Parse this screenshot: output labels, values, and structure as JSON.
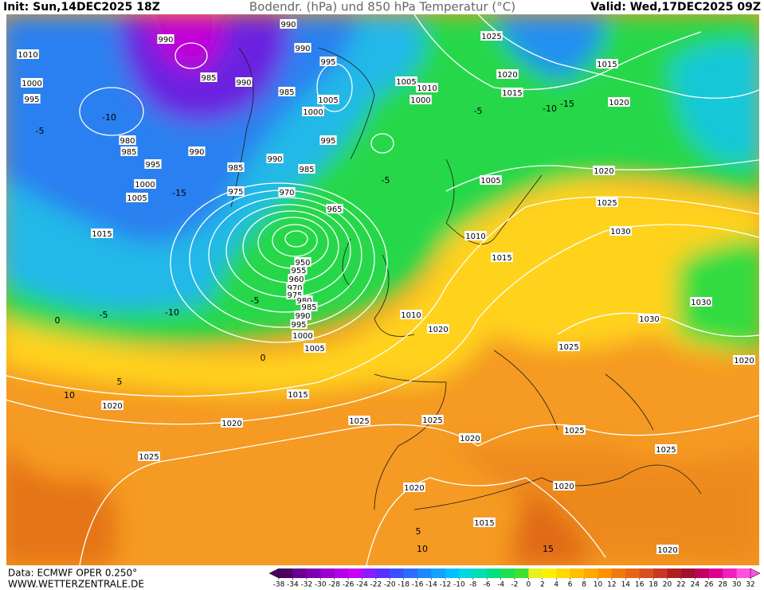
{
  "header": {
    "init": "Init: Sun,14DEC2025 18Z",
    "title": "Bodendr. (hPa) und 850 hPa Temperatur (°C)",
    "valid": "Valid: Wed,17DEC2025 09Z"
  },
  "footer": {
    "source": "Data: ECMWF OPER 0.250°",
    "site": "WWW.WETTERZENTRALE.DE"
  },
  "colorbar": {
    "ticks": [
      -38,
      -34,
      -32,
      -30,
      -28,
      -26,
      -24,
      -22,
      -20,
      -18,
      -16,
      -14,
      -12,
      -10,
      -8,
      -6,
      -4,
      -2,
      0,
      2,
      4,
      6,
      8,
      10,
      12,
      14,
      16,
      18,
      20,
      22,
      24,
      26,
      28,
      30,
      32
    ],
    "colors": [
      "#4b0060",
      "#6a0090",
      "#8000b0",
      "#9a00d0",
      "#b400e8",
      "#c800f8",
      "#8a1cff",
      "#5a30ff",
      "#3a50ff",
      "#2a6cff",
      "#2088ff",
      "#10a4ff",
      "#00c0ff",
      "#00d8e0",
      "#00e0b0",
      "#00e080",
      "#20e050",
      "#40e030",
      "#e8f020",
      "#fff000",
      "#ffd800",
      "#ffc000",
      "#ffa800",
      "#ff9000",
      "#f07a10",
      "#e86418",
      "#d85020",
      "#c83820",
      "#b02020",
      "#a01030",
      "#c00060",
      "#e00090",
      "#f020c0",
      "#ff50e0"
    ]
  },
  "isobar_labels": [
    "990",
    "990",
    "990",
    "985",
    "990",
    "1010",
    "1000",
    "995",
    "995",
    "985",
    "1005",
    "1000",
    "995",
    "980",
    "985",
    "990",
    "990",
    "985",
    "995",
    "985",
    "975",
    "970",
    "965",
    "1000",
    "1005",
    "1015",
    "950",
    "955",
    "960",
    "970",
    "975",
    "980",
    "985",
    "990",
    "995",
    "1000",
    "1005",
    "1010",
    "1020",
    "1015",
    "1020",
    "1020",
    "1025",
    "1025",
    "1025",
    "1020",
    "1025",
    "1025",
    "1030",
    "1030",
    "1025",
    "1020",
    "1020",
    "1015",
    "1020",
    "1020",
    "1025",
    "1030",
    "1020",
    "1005",
    "1010",
    "1015",
    "1025",
    "1020",
    "1015",
    "1015",
    "1020",
    "1005",
    "1010",
    "1000"
  ],
  "temp_labels": [
    "-10",
    "-5",
    "-15",
    "-10",
    "-5",
    "-5",
    "-5",
    "-10",
    "-15",
    "0",
    "5",
    "10",
    "5",
    "10",
    "15",
    "-5",
    "0"
  ]
}
